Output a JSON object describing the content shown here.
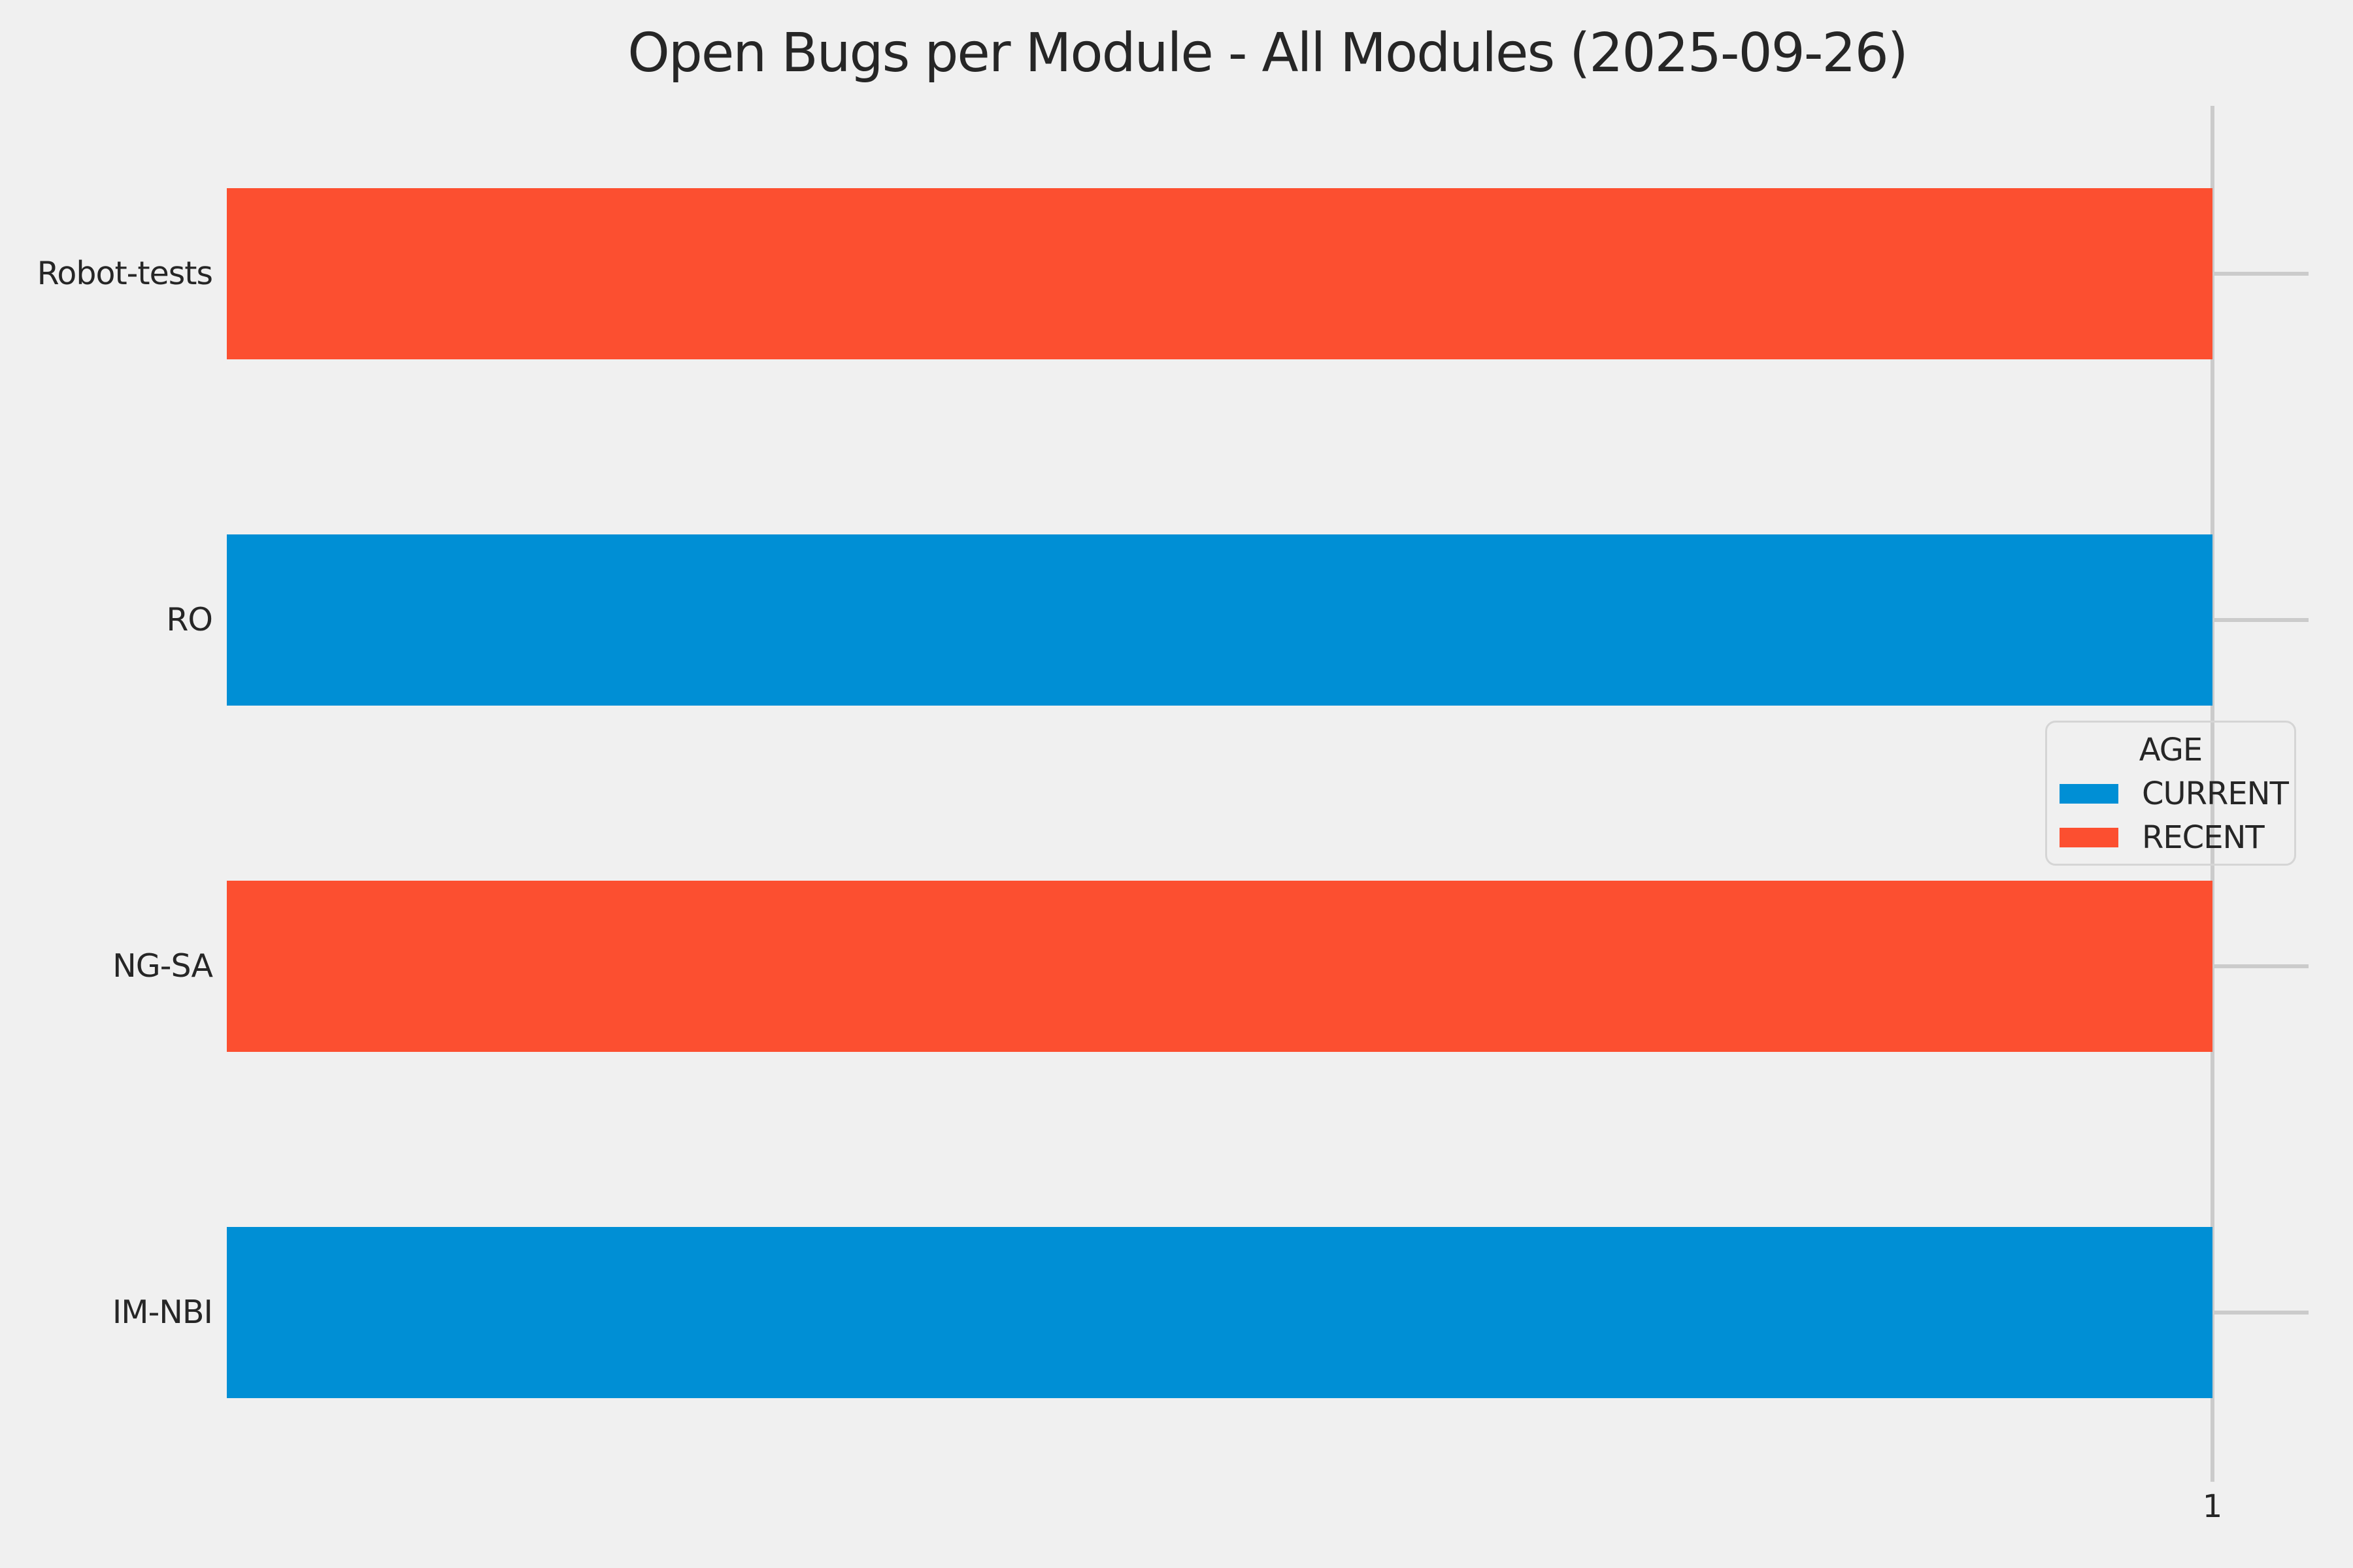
{
  "figure": {
    "title": "Open Bugs per Module - All Modules (2025-09-26)"
  },
  "colors": {
    "background": "#f0f0f0",
    "grid": "#cbcbcb",
    "text": "#262626",
    "legend_border": "#d5d5d5",
    "current": "#008fd5",
    "recent": "#fc4f30"
  },
  "legend": {
    "title": "AGE",
    "entries": [
      {
        "label": "CURRENT",
        "color": "#008fd5"
      },
      {
        "label": "RECENT",
        "color": "#fc4f30"
      }
    ]
  },
  "x_axis": {
    "tick_labels": [
      "1"
    ]
  },
  "chart_data": {
    "type": "bar",
    "orientation": "horizontal",
    "title": "Open Bugs per Module - All Modules (2025-09-26)",
    "categories": [
      "Robot-tests",
      "RO",
      "NG-SA",
      "IM-NBI"
    ],
    "bars": [
      {
        "category": "Robot-tests",
        "age": "RECENT",
        "value": 1
      },
      {
        "category": "RO",
        "age": "CURRENT",
        "value": 1
      },
      {
        "category": "NG-SA",
        "age": "RECENT",
        "value": 1
      },
      {
        "category": "IM-NBI",
        "age": "CURRENT",
        "value": 1
      }
    ],
    "series": [
      {
        "name": "CURRENT",
        "color": "#008fd5",
        "values": [
          0,
          1,
          0,
          1
        ]
      },
      {
        "name": "RECENT",
        "color": "#fc4f30",
        "values": [
          1,
          0,
          1,
          0
        ]
      }
    ],
    "xlabel": "",
    "ylabel": "",
    "xlim": [
      0,
      1.05
    ],
    "x_ticks": [
      1
    ],
    "legend_title": "AGE",
    "legend_position": "center-right",
    "grid": true
  }
}
